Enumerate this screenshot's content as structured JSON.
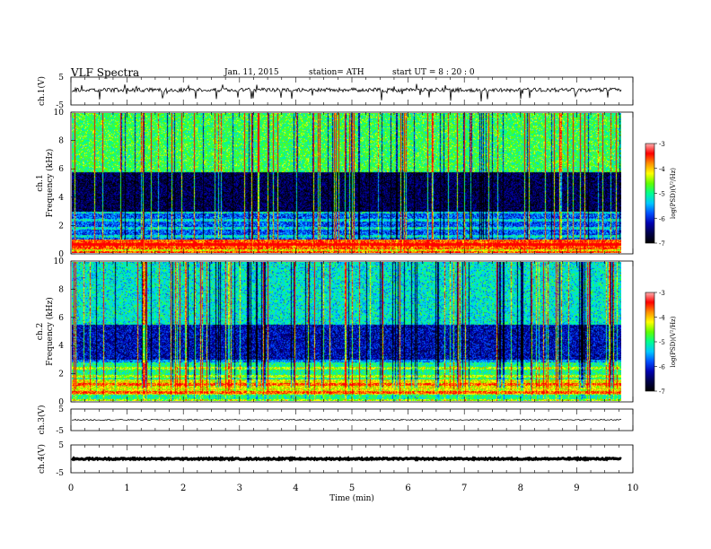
{
  "header": {
    "title": "VLF  Spectra",
    "date": "Jan.  11,  2015",
    "station": "station= ATH",
    "start_ut": "start  UT  =   8 : 20 : 0"
  },
  "colors": {
    "colormap": [
      "#000000",
      "#00004a",
      "#0000b0",
      "#0050ff",
      "#00c8ff",
      "#00ff90",
      "#60ff00",
      "#ffff00",
      "#ff9000",
      "#ff0000",
      "#ffb0b0"
    ],
    "trace": "#000000"
  },
  "chart_data": [
    {
      "type": "line",
      "panel": "ch1-waveform",
      "ylabel": "ch.1(V)",
      "yticks": [
        "5",
        "-5"
      ],
      "ylim": [
        -5,
        5
      ],
      "description_value": "noisy waveform near +0.5 V with negative spikes",
      "baseline": 0.4
    },
    {
      "type": "heatmap",
      "panel": "ch1-spectrogram",
      "ylabel": "Frequency  (kHz)",
      "channel_label": "ch.1",
      "yticks": [
        "0",
        "2",
        "4",
        "6",
        "8",
        "10"
      ],
      "ylim": [
        0,
        10
      ],
      "xlim": [
        0,
        9.8
      ],
      "colorbar": {
        "label": "log(PSD)(V²/Hz)",
        "ticks": [
          "-3",
          "-4",
          "-5",
          "-6",
          "-7"
        ],
        "range": [
          -7,
          -3
        ]
      },
      "bands": [
        {
          "from": 0,
          "to": 0.3,
          "level": 0.75
        },
        {
          "from": 0.3,
          "to": 1.0,
          "level": 0.9
        },
        {
          "from": 1.0,
          "to": 3.0,
          "level": 0.35
        },
        {
          "from": 3.0,
          "to": 5.8,
          "level": 0.15
        },
        {
          "from": 5.8,
          "to": 10,
          "level": 0.6
        }
      ]
    },
    {
      "type": "heatmap",
      "panel": "ch2-spectrogram",
      "ylabel": "Frequency  (kHz)",
      "channel_label": "ch.2",
      "yticks": [
        "0",
        "2",
        "4",
        "6",
        "8",
        "10"
      ],
      "ylim": [
        0,
        10
      ],
      "xlim": [
        0,
        9.8
      ],
      "colorbar": {
        "label": "log(PSD)(V²/Hz)",
        "ticks": [
          "-3",
          "-4",
          "-5",
          "-6",
          "-7"
        ],
        "range": [
          -7,
          -3
        ]
      },
      "bands": [
        {
          "from": 0,
          "to": 0.5,
          "level": 0.55
        },
        {
          "from": 0.5,
          "to": 1.6,
          "level": 0.75
        },
        {
          "from": 1.6,
          "to": 2.8,
          "level": 0.55
        },
        {
          "from": 2.8,
          "to": 5.5,
          "level": 0.25
        },
        {
          "from": 5.5,
          "to": 10,
          "level": 0.5
        }
      ]
    },
    {
      "type": "line",
      "panel": "ch3-waveform",
      "ylabel": "ch.3(V)",
      "yticks": [
        "5",
        "-5"
      ],
      "ylim": [
        -5,
        5
      ],
      "baseline": 0
    },
    {
      "type": "line",
      "panel": "ch4-waveform",
      "ylabel": "ch.4(V)",
      "yticks": [
        "5",
        "-5"
      ],
      "ylim": [
        -5,
        5
      ],
      "baseline": 0
    }
  ],
  "x_axis": {
    "label": "Time  (min)",
    "ticks": [
      "0",
      "1",
      "2",
      "3",
      "4",
      "5",
      "6",
      "7",
      "8",
      "9",
      "10"
    ],
    "xlim": [
      0,
      10
    ]
  }
}
